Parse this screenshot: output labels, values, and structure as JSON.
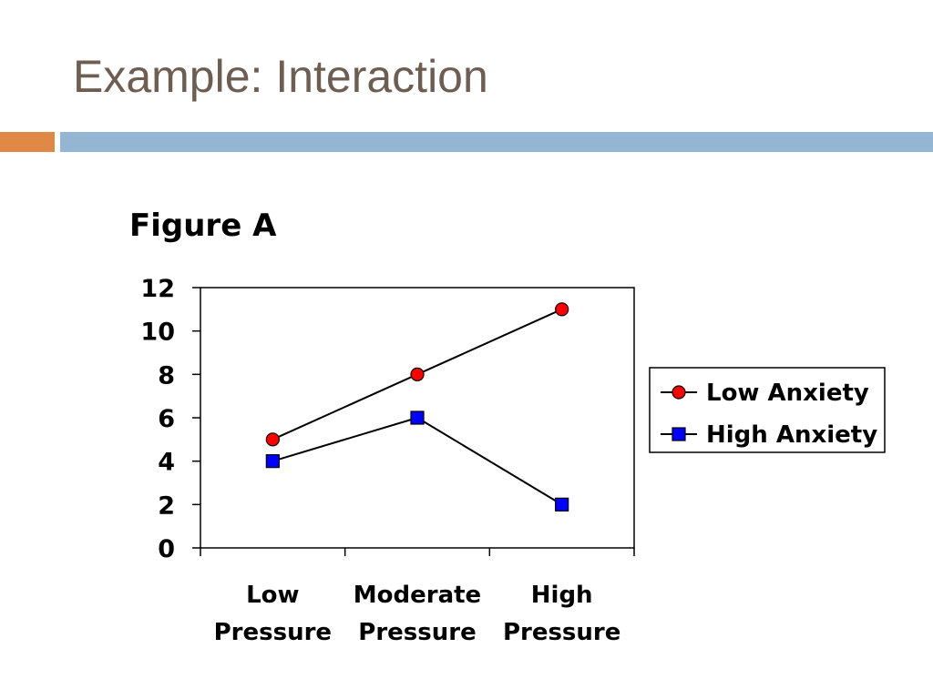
{
  "slide": {
    "title": "Example: Interaction",
    "figure_label": "Figure A",
    "accent_colors": {
      "left_bar": "#e08845",
      "right_bar": "#94b6d2"
    }
  },
  "chart_data": {
    "type": "line",
    "categories": [
      [
        "Low",
        "Pressure"
      ],
      [
        "Moderate",
        "Pressure"
      ],
      [
        "High",
        "Pressure"
      ]
    ],
    "ylim": [
      0,
      12
    ],
    "yticks": [
      "0",
      "2",
      "4",
      "6",
      "8",
      "10",
      "12"
    ],
    "grid": false,
    "legend_position": "right",
    "series": [
      {
        "name": "Low Anxiety",
        "values": [
          5,
          8,
          11
        ],
        "marker": "circle",
        "marker_color": "#ff0000",
        "line_color": "#000000"
      },
      {
        "name": "High Anxiety",
        "values": [
          4,
          6,
          2
        ],
        "marker": "square",
        "marker_color": "#0000ff",
        "line_color": "#000000"
      }
    ]
  }
}
